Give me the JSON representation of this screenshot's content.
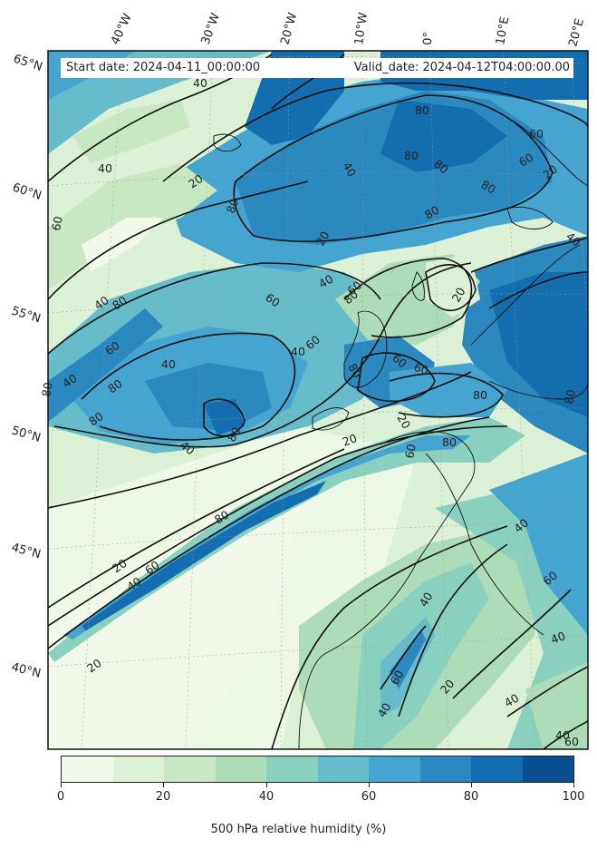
{
  "header": {
    "start_date": "Start date: 2024-04-11_00:00:00",
    "valid_date": "Valid_date: 2024-04-12T04:00:00.00"
  },
  "longitude_labels": [
    "40°W",
    "30°W",
    "20°W",
    "10°W",
    "0°",
    "10°E",
    "20°E"
  ],
  "latitude_labels": [
    "65°N",
    "60°N",
    "55°N",
    "50°N",
    "45°N",
    "40°N"
  ],
  "contour_labels": [
    "20",
    "40",
    "60",
    "80"
  ],
  "colorbar": {
    "title": "500 hPa relative humidity (%)",
    "ticks": [
      "0",
      "20",
      "40",
      "60",
      "80",
      "100"
    ],
    "colors": [
      "#f2f9ea",
      "#dcf0d6",
      "#c8e8c2",
      "#acdcb8",
      "#8ad0bf",
      "#66bccb",
      "#45a5d0",
      "#2c89c0",
      "#146daf",
      "#0a4f91"
    ]
  },
  "legend_levels": [
    0,
    10,
    20,
    30,
    40,
    50,
    60,
    70,
    80,
    90,
    100
  ]
}
